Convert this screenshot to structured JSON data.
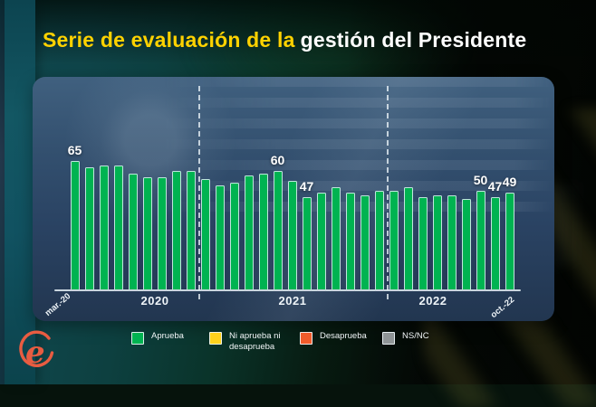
{
  "title": {
    "highlight": "Serie de evaluación de la",
    "rest": "gestión del Presidente"
  },
  "logo": {
    "letter": "e"
  },
  "chart_data": {
    "type": "bar",
    "title": "Serie de evaluación de la gestión del Presidente",
    "ylim": [
      0,
      70
    ],
    "grid": false,
    "bar_color": "#00b351",
    "values": [
      65,
      62,
      63,
      63,
      59,
      57,
      57,
      60,
      60,
      56,
      53,
      54,
      58,
      59,
      60,
      55,
      47,
      49,
      52,
      49,
      48,
      50,
      50,
      52,
      47,
      48,
      48,
      46,
      50,
      47,
      49
    ],
    "sections": [
      {
        "year": "2020",
        "count": 9
      },
      {
        "year": "2021",
        "count": 13
      },
      {
        "year": "2022",
        "count": 9
      }
    ],
    "value_labels": [
      {
        "index": 0,
        "text": "65"
      },
      {
        "index": 14,
        "text": "60"
      },
      {
        "index": 16,
        "text": "47"
      },
      {
        "index": 28,
        "text": "50"
      },
      {
        "index": 29,
        "text": "47"
      },
      {
        "index": 30,
        "text": "49"
      }
    ],
    "x_first_label": "mar.-20",
    "x_last_label": "oct.-22",
    "legend_position": "bottom",
    "legend": [
      {
        "label": "Aprueba",
        "color": "#00b351"
      },
      {
        "label": "Ni aprueba ni desaprueba",
        "color": "#ffd21c"
      },
      {
        "label": "Desaprueba",
        "color": "#f15b2b"
      },
      {
        "label": "NS/NC",
        "color": "#8f9496"
      }
    ]
  }
}
